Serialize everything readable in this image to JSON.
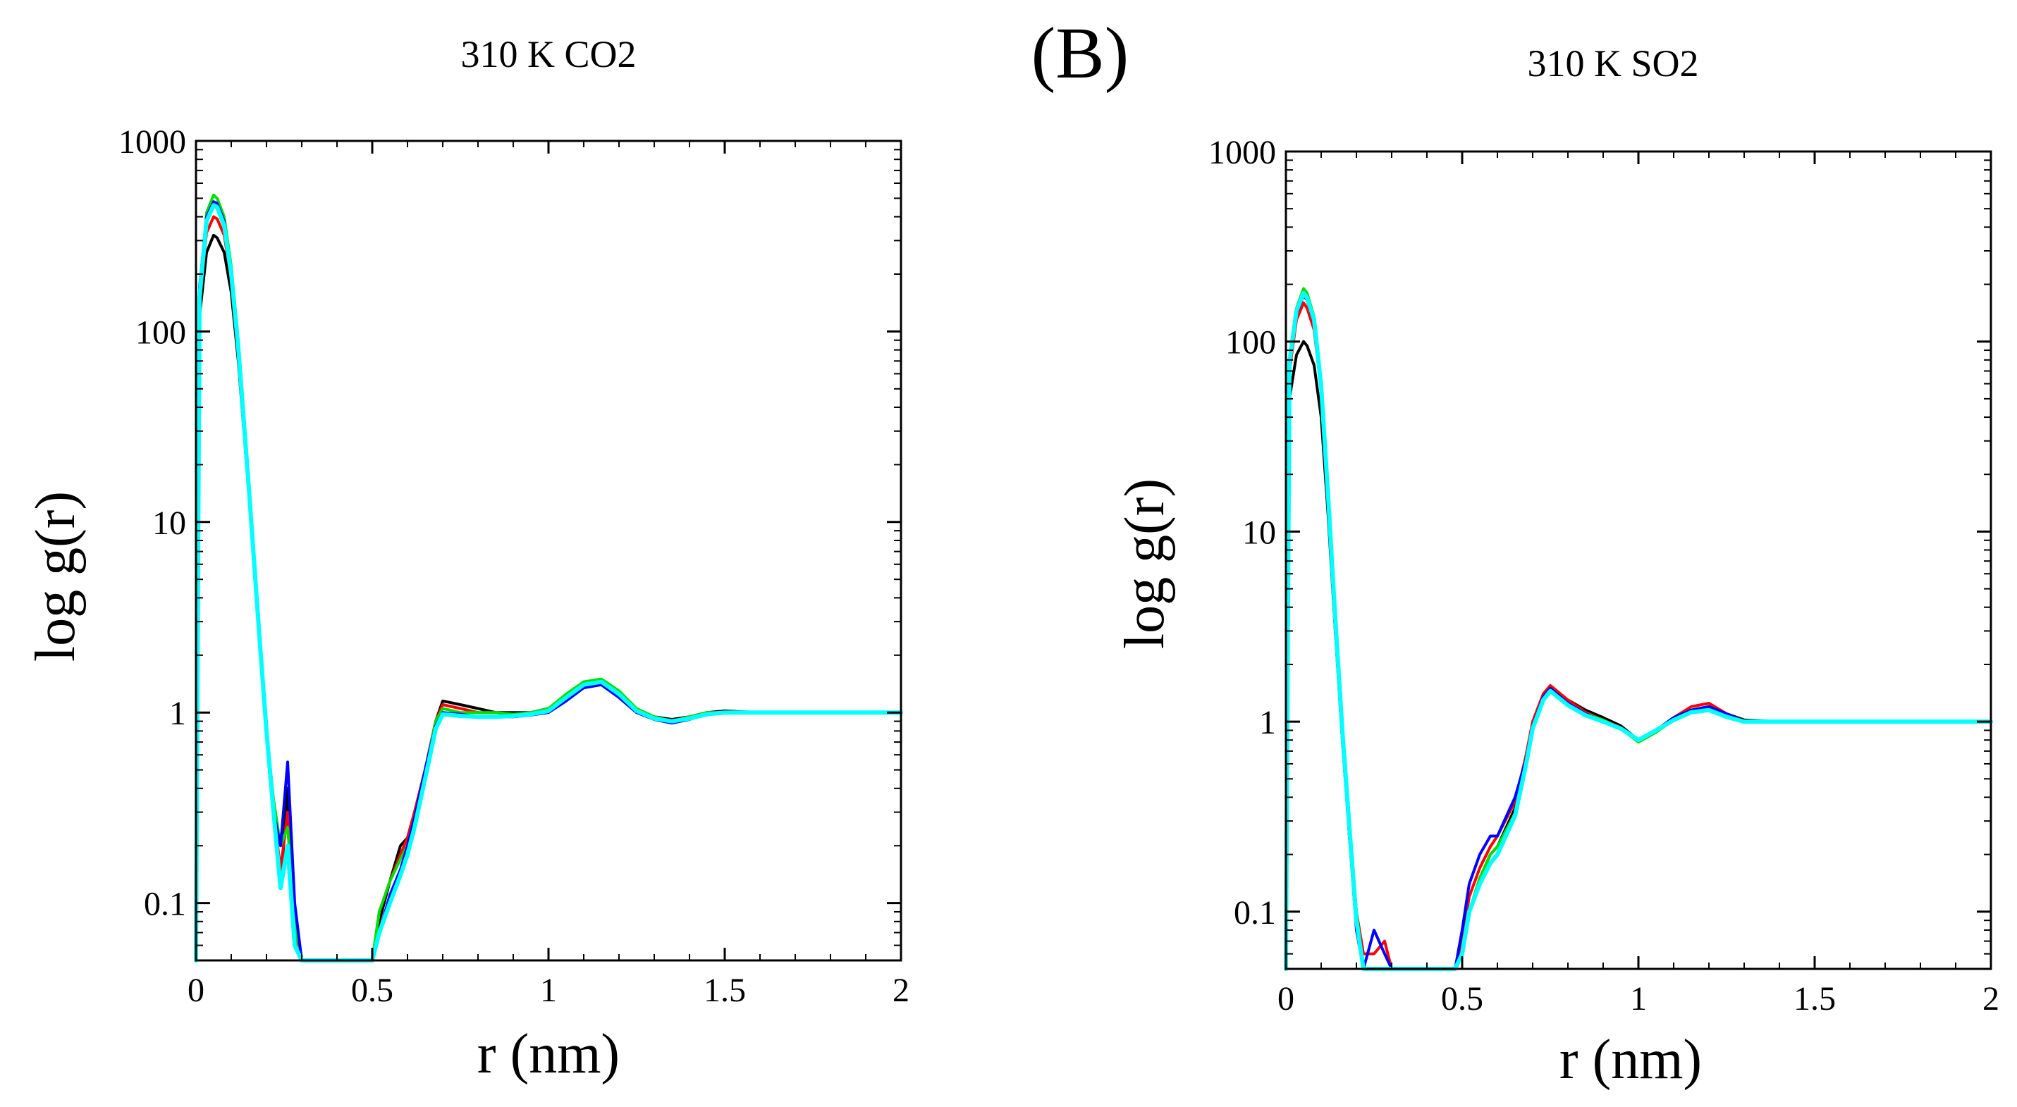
{
  "panel_letter": "(B)",
  "chart_data": [
    {
      "type": "line",
      "title": "310 K CO2",
      "xlabel": "r (nm)",
      "ylabel": "log g(r)",
      "xscale": "linear",
      "yscale": "log",
      "xlim": [
        0,
        2
      ],
      "ylim": [
        0.05,
        1000
      ],
      "xticks": [
        0,
        0.5,
        1,
        1.5,
        2
      ],
      "xtick_labels": [
        "0",
        "0.5",
        "1",
        "1.5",
        "2"
      ],
      "yticks": [
        0.1,
        1,
        10,
        100,
        1000
      ],
      "ytick_labels": [
        "0.1",
        "1",
        "10",
        "100",
        "1000"
      ],
      "grid": false,
      "series": [
        {
          "name": "black",
          "color": "#000000",
          "x": [
            0.0,
            0.01,
            0.03,
            0.05,
            0.06,
            0.08,
            0.1,
            0.12,
            0.15,
            0.18,
            0.2,
            0.22,
            0.24,
            0.26,
            0.28,
            0.3,
            0.5,
            0.52,
            0.55,
            0.58,
            0.6,
            0.62,
            0.65,
            0.68,
            0.7,
            0.75,
            0.8,
            0.85,
            0.9,
            0.95,
            1.0,
            1.05,
            1.1,
            1.15,
            1.2,
            1.25,
            1.3,
            1.35,
            1.4,
            1.45,
            1.5,
            1.6,
            1.7,
            1.8,
            1.9,
            2.0
          ],
          "y": [
            0.05,
            120,
            260,
            320,
            310,
            260,
            160,
            70,
            14,
            2.5,
            0.8,
            0.3,
            0.12,
            0.4,
            0.06,
            0.05,
            0.05,
            0.08,
            0.13,
            0.2,
            0.22,
            0.3,
            0.5,
            0.9,
            1.15,
            1.1,
            1.05,
            1.0,
            1.0,
            1.0,
            1.05,
            1.2,
            1.35,
            1.4,
            1.2,
            1.0,
            0.95,
            0.92,
            0.95,
            1.0,
            1.02,
            1.0,
            1.0,
            1.0,
            1.0,
            1.0
          ]
        },
        {
          "name": "red",
          "color": "#ff0000",
          "x": [
            0.0,
            0.01,
            0.03,
            0.05,
            0.06,
            0.08,
            0.1,
            0.12,
            0.15,
            0.18,
            0.2,
            0.22,
            0.24,
            0.26,
            0.28,
            0.3,
            0.5,
            0.52,
            0.55,
            0.58,
            0.6,
            0.62,
            0.65,
            0.68,
            0.7,
            0.75,
            0.8,
            0.85,
            0.9,
            0.95,
            1.0,
            1.05,
            1.1,
            1.15,
            1.2,
            1.25,
            1.3,
            1.35,
            1.4,
            1.45,
            1.5,
            1.6,
            1.7,
            1.8,
            1.9,
            2.0
          ],
          "y": [
            0.05,
            150,
            330,
            400,
            390,
            320,
            190,
            80,
            15,
            2.6,
            0.8,
            0.3,
            0.15,
            0.3,
            0.07,
            0.05,
            0.05,
            0.09,
            0.13,
            0.18,
            0.22,
            0.3,
            0.5,
            0.9,
            1.1,
            1.05,
            1.0,
            1.0,
            0.98,
            1.0,
            1.05,
            1.2,
            1.4,
            1.45,
            1.25,
            1.0,
            0.95,
            0.9,
            0.95,
            1.0,
            1.0,
            1.0,
            1.0,
            1.0,
            1.0,
            1.0
          ]
        },
        {
          "name": "green",
          "color": "#00e000",
          "x": [
            0.0,
            0.01,
            0.03,
            0.05,
            0.06,
            0.08,
            0.1,
            0.12,
            0.15,
            0.18,
            0.2,
            0.22,
            0.24,
            0.26,
            0.28,
            0.3,
            0.5,
            0.52,
            0.55,
            0.58,
            0.6,
            0.62,
            0.65,
            0.68,
            0.7,
            0.75,
            0.8,
            0.85,
            0.9,
            0.95,
            1.0,
            1.05,
            1.1,
            1.15,
            1.2,
            1.25,
            1.3,
            1.35,
            1.4,
            1.45,
            1.5,
            1.6,
            1.7,
            1.8,
            1.9,
            2.0
          ],
          "y": [
            0.05,
            160,
            420,
            520,
            500,
            400,
            220,
            90,
            16,
            2.6,
            0.8,
            0.35,
            0.2,
            0.25,
            0.08,
            0.05,
            0.05,
            0.09,
            0.13,
            0.17,
            0.2,
            0.28,
            0.48,
            0.9,
            1.05,
            1.0,
            1.0,
            1.0,
            0.98,
            1.0,
            1.05,
            1.25,
            1.45,
            1.5,
            1.3,
            1.05,
            0.95,
            0.9,
            0.95,
            1.0,
            1.0,
            1.0,
            1.0,
            1.0,
            1.0,
            1.0
          ]
        },
        {
          "name": "blue",
          "color": "#0000ff",
          "x": [
            0.0,
            0.01,
            0.03,
            0.05,
            0.06,
            0.08,
            0.1,
            0.12,
            0.15,
            0.18,
            0.2,
            0.22,
            0.24,
            0.26,
            0.28,
            0.3,
            0.5,
            0.52,
            0.55,
            0.58,
            0.6,
            0.62,
            0.65,
            0.68,
            0.7,
            0.75,
            0.8,
            0.85,
            0.9,
            0.95,
            1.0,
            1.05,
            1.1,
            1.15,
            1.2,
            1.25,
            1.3,
            1.35,
            1.4,
            1.45,
            1.5,
            1.6,
            1.7,
            1.8,
            1.9,
            2.0
          ],
          "y": [
            0.05,
            170,
            400,
            480,
            470,
            380,
            210,
            85,
            15,
            2.5,
            0.8,
            0.3,
            0.2,
            0.55,
            0.1,
            0.05,
            0.05,
            0.07,
            0.11,
            0.15,
            0.2,
            0.28,
            0.5,
            0.85,
            1.0,
            0.98,
            0.95,
            0.95,
            0.95,
            0.97,
            1.0,
            1.15,
            1.35,
            1.4,
            1.2,
            1.0,
            0.92,
            0.88,
            0.92,
            0.98,
            1.0,
            1.0,
            1.0,
            1.0,
            1.0,
            1.0
          ]
        },
        {
          "name": "cyan",
          "color": "#00ffff",
          "x": [
            0.0,
            0.01,
            0.03,
            0.05,
            0.06,
            0.08,
            0.1,
            0.12,
            0.15,
            0.18,
            0.2,
            0.22,
            0.24,
            0.26,
            0.28,
            0.3,
            0.5,
            0.52,
            0.55,
            0.58,
            0.6,
            0.62,
            0.65,
            0.68,
            0.7,
            0.75,
            0.8,
            0.85,
            0.9,
            0.95,
            1.0,
            1.05,
            1.1,
            1.15,
            1.2,
            1.25,
            1.3,
            1.35,
            1.4,
            1.45,
            1.5,
            1.6,
            1.7,
            1.8,
            1.9,
            2.0
          ],
          "y": [
            0.05,
            150,
            380,
            460,
            450,
            360,
            200,
            82,
            15,
            2.5,
            0.8,
            0.3,
            0.12,
            0.2,
            0.06,
            0.05,
            0.05,
            0.07,
            0.1,
            0.14,
            0.18,
            0.25,
            0.45,
            0.82,
            0.98,
            0.96,
            0.95,
            0.95,
            0.96,
            0.98,
            1.02,
            1.2,
            1.4,
            1.45,
            1.25,
            1.02,
            0.93,
            0.9,
            0.93,
            0.98,
            1.0,
            1.0,
            1.0,
            1.0,
            1.0,
            1.0
          ]
        }
      ]
    },
    {
      "type": "line",
      "title": "310 K SO2",
      "xlabel": "r (nm)",
      "ylabel": "log g(r)",
      "xscale": "linear",
      "yscale": "log",
      "xlim": [
        0,
        2
      ],
      "ylim": [
        0.05,
        1000
      ],
      "xticks": [
        0,
        0.5,
        1,
        1.5,
        2
      ],
      "xtick_labels": [
        "0",
        "0.5",
        "1",
        "1.5",
        "2"
      ],
      "yticks": [
        0.1,
        1,
        10,
        100,
        1000
      ],
      "ytick_labels": [
        "0.1",
        "1",
        "10",
        "100",
        "1000"
      ],
      "grid": false,
      "series": [
        {
          "name": "black",
          "color": "#000000",
          "x": [
            0.0,
            0.01,
            0.03,
            0.05,
            0.06,
            0.08,
            0.1,
            0.12,
            0.14,
            0.16,
            0.18,
            0.2,
            0.22,
            0.25,
            0.28,
            0.3,
            0.48,
            0.5,
            0.52,
            0.55,
            0.58,
            0.6,
            0.65,
            0.68,
            0.7,
            0.73,
            0.75,
            0.8,
            0.85,
            0.9,
            0.95,
            1.0,
            1.05,
            1.1,
            1.15,
            1.2,
            1.25,
            1.3,
            1.4,
            1.5,
            1.6,
            1.7,
            1.8,
            1.9,
            2.0
          ],
          "y": [
            0.05,
            50,
            85,
            100,
            95,
            75,
            40,
            12,
            3.0,
            0.8,
            0.25,
            0.1,
            0.05,
            0.05,
            0.05,
            0.05,
            0.05,
            0.06,
            0.1,
            0.15,
            0.2,
            0.22,
            0.35,
            0.6,
            0.95,
            1.35,
            1.5,
            1.3,
            1.15,
            1.05,
            0.95,
            0.8,
            0.9,
            1.05,
            1.15,
            1.2,
            1.1,
            1.02,
            1.0,
            1.0,
            1.0,
            1.0,
            1.0,
            1.0,
            1.0
          ]
        },
        {
          "name": "red",
          "color": "#ff0000",
          "x": [
            0.0,
            0.01,
            0.03,
            0.05,
            0.06,
            0.08,
            0.1,
            0.12,
            0.14,
            0.16,
            0.18,
            0.2,
            0.22,
            0.25,
            0.28,
            0.3,
            0.48,
            0.5,
            0.52,
            0.55,
            0.58,
            0.6,
            0.65,
            0.68,
            0.7,
            0.73,
            0.75,
            0.8,
            0.85,
            0.9,
            0.95,
            1.0,
            1.05,
            1.1,
            1.15,
            1.2,
            1.25,
            1.3,
            1.4,
            1.5,
            1.6,
            1.7,
            1.8,
            1.9,
            2.0
          ],
          "y": [
            0.05,
            70,
            130,
            160,
            150,
            115,
            55,
            15,
            3.5,
            0.9,
            0.3,
            0.1,
            0.06,
            0.06,
            0.07,
            0.05,
            0.05,
            0.07,
            0.12,
            0.17,
            0.22,
            0.25,
            0.38,
            0.65,
            1.0,
            1.4,
            1.55,
            1.3,
            1.12,
            1.02,
            0.93,
            0.8,
            0.9,
            1.05,
            1.2,
            1.25,
            1.1,
            1.0,
            1.0,
            1.0,
            1.0,
            1.0,
            1.0,
            1.0,
            1.0
          ]
        },
        {
          "name": "green",
          "color": "#00e000",
          "x": [
            0.0,
            0.01,
            0.03,
            0.05,
            0.06,
            0.08,
            0.1,
            0.12,
            0.14,
            0.16,
            0.18,
            0.2,
            0.22,
            0.25,
            0.28,
            0.3,
            0.48,
            0.5,
            0.52,
            0.55,
            0.58,
            0.6,
            0.65,
            0.68,
            0.7,
            0.73,
            0.75,
            0.8,
            0.85,
            0.9,
            0.95,
            1.0,
            1.05,
            1.1,
            1.15,
            1.2,
            1.25,
            1.3,
            1.4,
            1.5,
            1.6,
            1.7,
            1.8,
            1.9,
            2.0
          ],
          "y": [
            0.05,
            80,
            150,
            190,
            180,
            135,
            60,
            16,
            3.6,
            0.9,
            0.3,
            0.1,
            0.05,
            0.05,
            0.05,
            0.05,
            0.05,
            0.06,
            0.1,
            0.15,
            0.2,
            0.22,
            0.33,
            0.6,
            0.95,
            1.3,
            1.45,
            1.25,
            1.1,
            1.02,
            0.92,
            0.78,
            0.88,
            1.02,
            1.15,
            1.18,
            1.08,
            1.0,
            1.0,
            1.0,
            1.0,
            1.0,
            1.0,
            1.0,
            1.0
          ]
        },
        {
          "name": "blue",
          "color": "#0000ff",
          "x": [
            0.0,
            0.01,
            0.03,
            0.05,
            0.06,
            0.08,
            0.1,
            0.12,
            0.14,
            0.16,
            0.18,
            0.2,
            0.22,
            0.25,
            0.28,
            0.3,
            0.48,
            0.5,
            0.52,
            0.55,
            0.58,
            0.6,
            0.65,
            0.68,
            0.7,
            0.73,
            0.75,
            0.8,
            0.85,
            0.9,
            0.95,
            1.0,
            1.05,
            1.1,
            1.15,
            1.2,
            1.25,
            1.3,
            1.4,
            1.5,
            1.6,
            1.7,
            1.8,
            1.9,
            2.0
          ],
          "y": [
            0.05,
            75,
            140,
            175,
            165,
            125,
            58,
            15,
            3.4,
            0.9,
            0.25,
            0.08,
            0.05,
            0.08,
            0.06,
            0.05,
            0.05,
            0.08,
            0.14,
            0.2,
            0.25,
            0.25,
            0.4,
            0.62,
            0.95,
            1.35,
            1.5,
            1.25,
            1.1,
            1.0,
            0.92,
            0.8,
            0.9,
            1.05,
            1.15,
            1.2,
            1.1,
            1.0,
            1.0,
            1.0,
            1.0,
            1.0,
            1.0,
            1.0,
            1.0
          ]
        },
        {
          "name": "cyan",
          "color": "#00ffff",
          "x": [
            0.0,
            0.01,
            0.03,
            0.05,
            0.06,
            0.08,
            0.1,
            0.12,
            0.14,
            0.16,
            0.18,
            0.2,
            0.22,
            0.25,
            0.28,
            0.3,
            0.48,
            0.5,
            0.52,
            0.55,
            0.58,
            0.6,
            0.65,
            0.68,
            0.7,
            0.73,
            0.75,
            0.8,
            0.85,
            0.9,
            0.95,
            1.0,
            1.05,
            1.1,
            1.15,
            1.2,
            1.25,
            1.3,
            1.4,
            1.5,
            1.6,
            1.7,
            1.8,
            1.9,
            2.0
          ],
          "y": [
            0.05,
            78,
            145,
            180,
            170,
            130,
            58,
            15,
            3.5,
            0.9,
            0.28,
            0.09,
            0.05,
            0.05,
            0.05,
            0.05,
            0.05,
            0.06,
            0.1,
            0.14,
            0.18,
            0.2,
            0.32,
            0.58,
            0.92,
            1.3,
            1.45,
            1.22,
            1.08,
            1.0,
            0.92,
            0.8,
            0.9,
            1.02,
            1.12,
            1.15,
            1.06,
            1.0,
            1.0,
            1.0,
            1.0,
            1.0,
            1.0,
            1.0,
            1.0
          ]
        }
      ]
    }
  ]
}
